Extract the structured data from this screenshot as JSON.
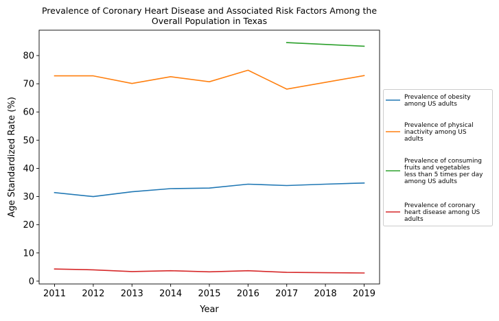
{
  "chart_data": {
    "type": "line",
    "title_lines": [
      "Prevalence of Coronary Heart Disease and Associated Risk Factors Among the",
      "Overall Population in Texas"
    ],
    "xlabel": "Year",
    "ylabel": "Age Standardized Rate (%)",
    "x": [
      2011,
      2012,
      2013,
      2014,
      2015,
      2016,
      2017,
      2018,
      2019
    ],
    "x_ticks": [
      "2011",
      "2012",
      "2013",
      "2014",
      "2015",
      "2016",
      "2017",
      "2018",
      "2019"
    ],
    "xlim": [
      2010.6,
      2019.4
    ],
    "ylim": [
      -1,
      89
    ],
    "y_ticks": [
      0,
      10,
      20,
      30,
      40,
      50,
      60,
      70,
      80
    ],
    "grid": false,
    "legend_position": "outside-right",
    "series": [
      {
        "name_lines": [
          "Prevalence of obesity",
          "among US adults"
        ],
        "color": "#1f77b4",
        "values": [
          31.4,
          30.0,
          31.7,
          32.8,
          33.0,
          34.4,
          33.9,
          34.4,
          34.8
        ]
      },
      {
        "name_lines": [
          "Prevalence of physical",
          "inactivity among US",
          "adults"
        ],
        "color": "#ff7f0e",
        "values": [
          72.8,
          72.8,
          70.1,
          72.5,
          70.7,
          74.8,
          68.1,
          70.5,
          72.9
        ]
      },
      {
        "name_lines": [
          "Prevalence of consuming",
          "fruits and vegetables",
          "less than 5 times per day",
          "among US adults"
        ],
        "color": "#2ca02c",
        "values": [
          null,
          null,
          null,
          null,
          null,
          null,
          84.6,
          null,
          83.3
        ]
      },
      {
        "name_lines": [
          "Prevalence of coronary",
          "heart disease among US",
          "adults"
        ],
        "color": "#d62728",
        "values": [
          4.3,
          4.0,
          3.4,
          3.7,
          3.3,
          3.7,
          3.1,
          3.0,
          2.9
        ]
      }
    ]
  }
}
